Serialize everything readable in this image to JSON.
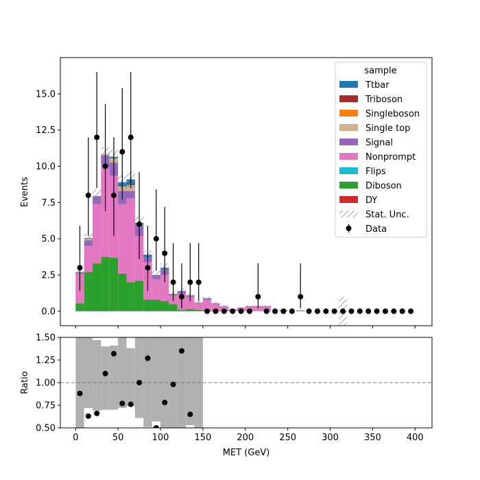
{
  "chart_data": [
    {
      "type": "bar",
      "stacked": true,
      "panel": "main",
      "ylabel": "Events",
      "ylim": [
        -1.0,
        17.5
      ],
      "yticks": [
        "0.0",
        "2.5",
        "5.0",
        "7.5",
        "10.0",
        "12.5",
        "15.0"
      ],
      "ytick_values": [
        0,
        2.5,
        5,
        7.5,
        10,
        12.5,
        15
      ],
      "bin_edges": [
        0,
        10,
        20,
        30,
        40,
        50,
        60,
        70,
        80,
        90,
        100,
        110,
        120,
        130,
        140,
        150,
        160,
        170,
        180,
        190,
        200,
        210,
        220,
        230,
        240,
        250,
        260,
        270,
        280,
        290,
        300,
        310,
        320,
        330,
        340,
        350,
        360,
        370,
        380,
        390,
        400
      ],
      "legend": {
        "title": "sample",
        "placement": "upper right",
        "entries": [
          "Ttbar",
          "Triboson",
          "Singleboson",
          "Single top",
          "Signal",
          "Nonprompt",
          "Flips",
          "Diboson",
          "DY",
          "Stat. Unc.",
          "Data"
        ]
      },
      "series": [
        {
          "name": "Diboson",
          "color": "#2ca02c",
          "values": [
            0.55,
            2.7,
            3.3,
            3.75,
            3.7,
            2.6,
            2.0,
            2.1,
            0.8,
            0.8,
            0.7,
            0.5,
            0.1,
            0.15,
            0.1,
            0.05,
            0.05,
            0.05,
            0.0,
            0.0,
            0.0,
            0.0,
            0.0,
            0.0,
            0.0,
            0.0,
            0.05,
            0.0,
            0.0,
            0.0,
            0.0,
            0.0,
            0.0,
            0.0,
            0.0,
            0.0,
            0.0,
            0.0,
            0.0,
            0.0
          ]
        },
        {
          "name": "Nonprompt",
          "color": "#e377c2",
          "values": [
            2.05,
            1.8,
            4.1,
            6.2,
            5.65,
            4.8,
            5.8,
            3.1,
            2.6,
            1.4,
            1.8,
            0.6,
            1.1,
            0.85,
            0.45,
            0.75,
            0.45,
            0.25,
            0.15,
            0.2,
            0.3,
            0.3,
            0.3,
            0.0,
            0.1,
            0.0,
            0.0,
            0.0,
            0.0,
            0.0,
            0.0,
            0.0,
            0.0,
            0.0,
            0.0,
            0.0,
            0.0,
            0.0,
            0.0,
            0.0
          ]
        },
        {
          "name": "Signal",
          "color": "#9467bd",
          "values": [
            0.1,
            0.4,
            0.55,
            0.8,
            0.9,
            0.9,
            0.5,
            0.8,
            0.3,
            0.3,
            0.4,
            0.1,
            0.2,
            0.1,
            0.05,
            0.1,
            0.05,
            0.05,
            0.0,
            0.05,
            0.05,
            0.05,
            0.05,
            0.0,
            0.0,
            0.0,
            0.0,
            0.0,
            0.0,
            0.0,
            0.0,
            0.0,
            0.0,
            0.0,
            0.0,
            0.0,
            0.0,
            0.0,
            0.0,
            0.0
          ]
        },
        {
          "name": "Single top",
          "color": "#d4b08c",
          "values": [
            0.0,
            0.1,
            0.0,
            0.1,
            0.3,
            0.3,
            0.4,
            0.0,
            0.0,
            0.0,
            0.0,
            0.0,
            0.0,
            0.0,
            0.0,
            0.0,
            0.0,
            0.0,
            0.0,
            0.0,
            0.0,
            0.0,
            0.0,
            0.0,
            0.0,
            0.0,
            0.0,
            0.0,
            0.0,
            0.0,
            0.0,
            0.0,
            0.0,
            0.0,
            0.0,
            0.0,
            0.0,
            0.0,
            0.0,
            0.0
          ]
        },
        {
          "name": "Ttbar",
          "color": "#1f77b4",
          "values": [
            0.0,
            0.05,
            0.0,
            0.0,
            0.1,
            0.3,
            0.4,
            0.1,
            0.2,
            0.0,
            0.1,
            0.0,
            0.0,
            0.0,
            0.0,
            0.0,
            0.0,
            0.0,
            0.0,
            0.0,
            0.0,
            0.0,
            0.0,
            0.0,
            0.0,
            0.0,
            0.0,
            0.0,
            0.0,
            0.0,
            0.0,
            0.0,
            0.0,
            0.0,
            0.0,
            0.0,
            0.0,
            0.0,
            0.0,
            0.0
          ]
        },
        {
          "name": "Triboson",
          "color": "#a52a2a",
          "values": [
            0,
            0,
            0,
            0,
            0,
            0,
            0,
            0,
            0,
            0,
            0,
            0,
            0,
            0,
            0,
            0,
            0,
            0,
            0,
            0,
            0,
            0,
            0,
            0,
            0,
            0,
            0,
            0,
            0,
            0,
            0,
            0,
            0,
            0,
            0,
            0,
            0,
            0,
            0,
            0
          ]
        },
        {
          "name": "Singleboson",
          "color": "#ff7f0e",
          "values": [
            0,
            0,
            0,
            0,
            0,
            0,
            0,
            0,
            0,
            0,
            0,
            0,
            0,
            0,
            0,
            0,
            0,
            0,
            0,
            0,
            0,
            0,
            0,
            0,
            0,
            0,
            0,
            0,
            0,
            0,
            0,
            0,
            0,
            0,
            0,
            0,
            0,
            0,
            0,
            0
          ]
        },
        {
          "name": "Flips",
          "color": "#17becf",
          "values": [
            0,
            0,
            0,
            0,
            0,
            0,
            0,
            0,
            0,
            0,
            0,
            0,
            0,
            0,
            0,
            0,
            0,
            0,
            0,
            0,
            0,
            0,
            0,
            0,
            0,
            0,
            0,
            0,
            0,
            0,
            0,
            0,
            0,
            0,
            0,
            0,
            0,
            0,
            0,
            0
          ]
        },
        {
          "name": "DY",
          "color": "#d62728",
          "values": [
            0,
            0,
            0,
            0,
            0,
            0,
            0,
            0,
            0,
            0,
            0,
            0,
            0,
            0,
            0,
            0,
            0,
            0,
            0,
            0,
            0,
            0,
            0,
            0,
            0,
            0,
            0,
            0,
            0,
            0,
            0,
            0,
            0,
            0,
            0,
            0,
            0,
            0,
            0,
            0
          ]
        }
      ],
      "stat_unc": [
        0.15,
        0.3,
        0.45,
        0.5,
        0.5,
        0.5,
        0.6,
        0.4,
        0.3,
        0.3,
        0.3,
        0.2,
        0.2,
        0.15,
        0.1,
        0.1,
        0.1,
        0.05,
        0.05,
        0.05,
        0.05,
        0.05,
        0.05,
        0.0,
        0.05,
        0.0,
        0.02,
        0.0,
        0.0,
        0.0,
        0.0,
        1.0,
        0.0,
        0.0,
        0.0,
        0.0,
        0.0,
        0.0,
        0.0,
        0.0
      ],
      "data": {
        "name": "Data",
        "x": [
          5,
          15,
          25,
          35,
          45,
          55,
          65,
          75,
          85,
          95,
          105,
          115,
          125,
          135,
          145,
          155,
          165,
          175,
          185,
          195,
          205,
          215,
          225,
          235,
          245,
          255,
          265,
          275,
          285,
          295,
          305,
          315,
          325,
          335,
          345,
          355,
          365,
          375,
          385,
          395
        ],
        "y": [
          3,
          8,
          12,
          10,
          8,
          11,
          12,
          6,
          3,
          5,
          4,
          2,
          1,
          2,
          2,
          0,
          0,
          0,
          0,
          0,
          0,
          1,
          0,
          0,
          0,
          0,
          1,
          0,
          0,
          0,
          0,
          0,
          0,
          0,
          0,
          0,
          0,
          0,
          0,
          0
        ],
        "yerr_low": [
          1.6,
          2.8,
          3.5,
          3.1,
          2.8,
          3.3,
          3.5,
          2.4,
          1.6,
          2.2,
          2.0,
          1.3,
          0.8,
          1.3,
          1.3,
          0,
          0,
          0,
          0,
          0,
          0,
          0.8,
          0,
          0,
          0,
          0,
          0.8,
          0,
          0,
          0,
          0,
          0,
          0,
          0,
          0,
          0,
          0,
          0,
          0,
          0
        ],
        "yerr_high": [
          2.9,
          4.0,
          4.5,
          4.3,
          4.0,
          4.4,
          4.5,
          3.6,
          2.9,
          3.4,
          3.2,
          2.7,
          2.3,
          2.7,
          2.7,
          0,
          0,
          0,
          0,
          0,
          0,
          2.3,
          0,
          0,
          0,
          0,
          2.3,
          0,
          0,
          0,
          0,
          0,
          0,
          0,
          0,
          0,
          0,
          0,
          0,
          0
        ]
      }
    },
    {
      "type": "scatter",
      "panel": "ratio",
      "xlabel": "MET (GeV)",
      "ylabel": "Ratio",
      "xlim": [
        -18,
        420
      ],
      "ylim": [
        0.5,
        1.5
      ],
      "xticks": [
        "0",
        "50",
        "100",
        "150",
        "200",
        "250",
        "300",
        "350",
        "400"
      ],
      "xtick_values": [
        0,
        50,
        100,
        150,
        200,
        250,
        300,
        350,
        400
      ],
      "yticks": [
        "0.50",
        "0.75",
        "1.00",
        "1.25",
        "1.50"
      ],
      "ytick_values": [
        0.5,
        0.75,
        1.0,
        1.25,
        1.5
      ],
      "reference_line": 1.0,
      "band": {
        "color": "#b0b0b0",
        "low": [
          0.0,
          0.72,
          0.69,
          0.7,
          0.7,
          0.72,
          0.74,
          0.61,
          0.51,
          0.57,
          0.4,
          0.44,
          0.5,
          0.53,
          0.0
        ],
        "high": [
          1.5,
          1.5,
          1.47,
          1.4,
          1.41,
          1.5,
          1.38,
          1.5,
          1.5,
          1.5,
          1.5,
          1.5,
          1.5,
          1.5,
          1.5
        ]
      },
      "points": {
        "x": [
          5,
          15,
          25,
          35,
          45,
          55,
          65,
          75,
          85,
          95,
          105,
          115,
          125,
          135
        ],
        "y": [
          0.88,
          0.63,
          0.66,
          1.1,
          1.32,
          0.77,
          0.76,
          1.0,
          1.27,
          0.5,
          0.78,
          0.98,
          1.35,
          0.65
        ]
      }
    }
  ]
}
